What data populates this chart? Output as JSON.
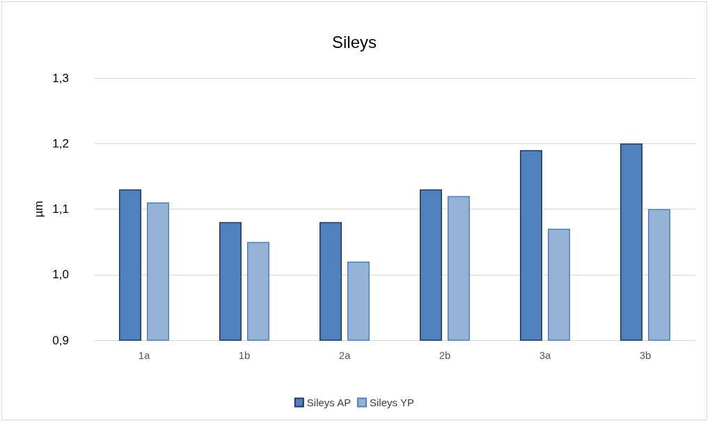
{
  "chart_data": {
    "type": "bar",
    "title": "Sileys",
    "ylabel": "µm",
    "categories": [
      "1a",
      "1b",
      "2a",
      "2b",
      "3a",
      "3b"
    ],
    "series": [
      {
        "name": "Sileys AP",
        "color": "#4f81bd",
        "values": [
          1.13,
          1.08,
          1.08,
          1.13,
          1.19,
          1.2
        ]
      },
      {
        "name": "Sileys YP",
        "color": "#95b3d7",
        "values": [
          1.11,
          1.05,
          1.02,
          1.12,
          1.07,
          1.1
        ]
      }
    ],
    "ylim": [
      0.9,
      1.3
    ],
    "yticks": [
      {
        "value": 0.9,
        "label": "0,9"
      },
      {
        "value": 1.0,
        "label": "1,0"
      },
      {
        "value": 1.1,
        "label": "1,1"
      },
      {
        "value": 1.2,
        "label": "1,2"
      },
      {
        "value": 1.3,
        "label": "1,3"
      }
    ],
    "grid": "y",
    "legend": "bottom"
  }
}
